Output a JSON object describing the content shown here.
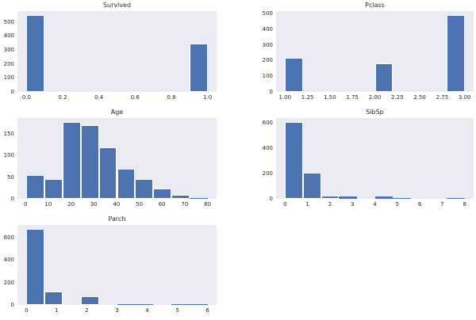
{
  "style": {
    "figure_background": "#ffffff",
    "axes_background": "#eaeaf2",
    "bar_color": "#4c72b0",
    "bar_edge_color": "#ffffff",
    "tick_label_color": "#262626",
    "title_color": "#262626",
    "grid": false,
    "legend": "none"
  },
  "chart_data": [
    {
      "type": "bar",
      "subtype": "histogram",
      "title": "Survived",
      "bin_edges": [
        0.0,
        0.1,
        0.2,
        0.3,
        0.4,
        0.5,
        0.6,
        0.7,
        0.8,
        0.9,
        1.0
      ],
      "counts": [
        549,
        0,
        0,
        0,
        0,
        0,
        0,
        0,
        0,
        342
      ],
      "xlim": [
        -0.05,
        1.05
      ],
      "ylim": [
        0,
        576.45
      ],
      "xticks": [
        0.0,
        0.2,
        0.4,
        0.6,
        0.8,
        1.0
      ],
      "xtick_labels": [
        "0.0",
        "0.2",
        "0.4",
        "0.6",
        "0.8",
        "1.0"
      ],
      "yticks": [
        0,
        100,
        200,
        300,
        400,
        500
      ],
      "ytick_labels": [
        "0",
        "100",
        "200",
        "300",
        "400",
        "500"
      ]
    },
    {
      "type": "bar",
      "subtype": "histogram",
      "title": "Pclass",
      "bin_edges": [
        1.0,
        1.2,
        1.4,
        1.6,
        1.8,
        2.0,
        2.2,
        2.4,
        2.6,
        2.8,
        3.0
      ],
      "counts": [
        216,
        0,
        0,
        0,
        0,
        184,
        0,
        0,
        0,
        491
      ],
      "xlim": [
        0.9,
        3.1
      ],
      "ylim": [
        0,
        515.55
      ],
      "xticks": [
        1.0,
        1.25,
        1.5,
        1.75,
        2.0,
        2.25,
        2.5,
        2.75,
        3.0
      ],
      "xtick_labels": [
        "1.00",
        "1.25",
        "1.50",
        "1.75",
        "2.00",
        "2.25",
        "2.50",
        "2.75",
        "3.00"
      ],
      "yticks": [
        0,
        100,
        200,
        300,
        400,
        500
      ],
      "ytick_labels": [
        "0",
        "100",
        "200",
        "300",
        "400",
        "500"
      ]
    },
    {
      "type": "bar",
      "subtype": "histogram",
      "title": "Age",
      "bin_edges": [
        0.42,
        8.378,
        16.336,
        24.294,
        32.252,
        40.21,
        48.168,
        56.126,
        64.084,
        72.042,
        80.0
      ],
      "counts": [
        54,
        46,
        177,
        169,
        118,
        70,
        45,
        24,
        9,
        2
      ],
      "xlim": [
        -3.559,
        83.979
      ],
      "ylim": [
        0,
        185.85
      ],
      "xticks": [
        0,
        10,
        20,
        30,
        40,
        50,
        60,
        70,
        80
      ],
      "xtick_labels": [
        "0",
        "10",
        "20",
        "30",
        "40",
        "50",
        "60",
        "70",
        "80"
      ],
      "yticks": [
        0,
        50,
        100,
        150
      ],
      "ytick_labels": [
        "0",
        "50",
        "100",
        "150"
      ]
    },
    {
      "type": "bar",
      "subtype": "histogram",
      "title": "SibSp",
      "bin_edges": [
        0.0,
        0.8,
        1.6,
        2.4,
        3.2,
        4.0,
        4.8,
        5.6,
        6.4,
        7.2,
        8.0
      ],
      "counts": [
        608,
        209,
        28,
        16,
        0,
        18,
        5,
        0,
        0,
        7
      ],
      "xlim": [
        -0.4,
        8.4
      ],
      "ylim": [
        0,
        638.4
      ],
      "xticks": [
        0,
        1,
        2,
        3,
        4,
        5,
        6,
        7,
        8
      ],
      "xtick_labels": [
        "0",
        "1",
        "2",
        "3",
        "4",
        "5",
        "6",
        "7",
        "8"
      ],
      "yticks": [
        0,
        200,
        400,
        600
      ],
      "ytick_labels": [
        "0",
        "200",
        "400",
        "600"
      ]
    },
    {
      "type": "bar",
      "subtype": "histogram",
      "title": "Parch",
      "bin_edges": [
        0.0,
        0.6,
        1.2,
        1.8,
        2.4,
        3.0,
        3.6,
        4.2,
        4.8,
        5.4,
        6.0
      ],
      "counts": [
        678,
        118,
        0,
        80,
        0,
        5,
        4,
        0,
        5,
        1
      ],
      "xlim": [
        -0.3,
        6.3
      ],
      "ylim": [
        0,
        711.9
      ],
      "xticks": [
        0,
        1,
        2,
        3,
        4,
        5,
        6
      ],
      "xtick_labels": [
        "0",
        "1",
        "2",
        "3",
        "4",
        "5",
        "6"
      ],
      "yticks": [
        0,
        200,
        400,
        600
      ],
      "ytick_labels": [
        "0",
        "200",
        "400",
        "600"
      ]
    }
  ]
}
